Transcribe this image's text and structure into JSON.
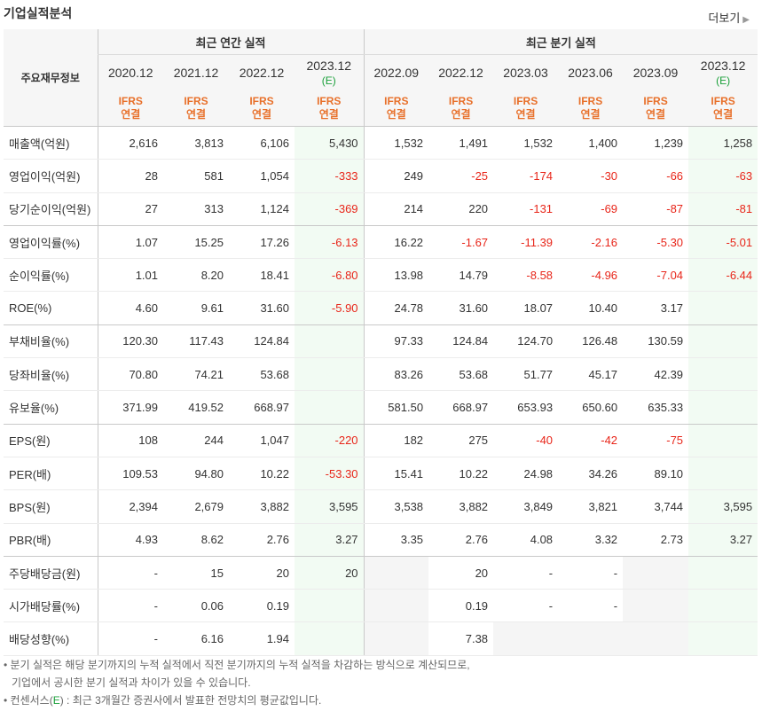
{
  "header": {
    "title": "기업실적분석",
    "more_label": "더보기"
  },
  "table": {
    "row_label_header": "주요재무정보",
    "group_annual": "최근 연간 실적",
    "group_quarter": "최근 분기 실적",
    "ifrs_line1": "IFRS",
    "ifrs_line2": "연결",
    "annual_dates": [
      "2020.12",
      "2021.12",
      "2022.12",
      "2023.12"
    ],
    "quarter_dates": [
      "2022.09",
      "2022.12",
      "2023.03",
      "2023.06",
      "2023.09",
      "2023.12"
    ],
    "estimate_mark": "(E)",
    "rows": [
      {
        "label": "매출액(억원)",
        "values": [
          "2,616",
          "3,813",
          "6,106",
          "5,430",
          "1,532",
          "1,491",
          "1,532",
          "1,400",
          "1,239",
          "1,258"
        ]
      },
      {
        "label": "영업이익(억원)",
        "values": [
          "28",
          "581",
          "1,054",
          "-333",
          "249",
          "-25",
          "-174",
          "-30",
          "-66",
          "-63"
        ]
      },
      {
        "label": "당기순이익(억원)",
        "values": [
          "27",
          "313",
          "1,124",
          "-369",
          "214",
          "220",
          "-131",
          "-69",
          "-87",
          "-81"
        ]
      },
      {
        "label": "영업이익률(%)",
        "values": [
          "1.07",
          "15.25",
          "17.26",
          "-6.13",
          "16.22",
          "-1.67",
          "-11.39",
          "-2.16",
          "-5.30",
          "-5.01"
        ]
      },
      {
        "label": "순이익률(%)",
        "values": [
          "1.01",
          "8.20",
          "18.41",
          "-6.80",
          "13.98",
          "14.79",
          "-8.58",
          "-4.96",
          "-7.04",
          "-6.44"
        ]
      },
      {
        "label": "ROE(%)",
        "values": [
          "4.60",
          "9.61",
          "31.60",
          "-5.90",
          "24.78",
          "31.60",
          "18.07",
          "10.40",
          "3.17",
          ""
        ]
      },
      {
        "label": "부채비율(%)",
        "values": [
          "120.30",
          "117.43",
          "124.84",
          "",
          "97.33",
          "124.84",
          "124.70",
          "126.48",
          "130.59",
          ""
        ]
      },
      {
        "label": "당좌비율(%)",
        "values": [
          "70.80",
          "74.21",
          "53.68",
          "",
          "83.26",
          "53.68",
          "51.77",
          "45.17",
          "42.39",
          ""
        ]
      },
      {
        "label": "유보율(%)",
        "values": [
          "371.99",
          "419.52",
          "668.97",
          "",
          "581.50",
          "668.97",
          "653.93",
          "650.60",
          "635.33",
          ""
        ]
      },
      {
        "label": "EPS(원)",
        "values": [
          "108",
          "244",
          "1,047",
          "-220",
          "182",
          "275",
          "-40",
          "-42",
          "-75",
          ""
        ]
      },
      {
        "label": "PER(배)",
        "values": [
          "109.53",
          "94.80",
          "10.22",
          "-53.30",
          "15.41",
          "10.22",
          "24.98",
          "34.26",
          "89.10",
          ""
        ]
      },
      {
        "label": "BPS(원)",
        "values": [
          "2,394",
          "2,679",
          "3,882",
          "3,595",
          "3,538",
          "3,882",
          "3,849",
          "3,821",
          "3,744",
          "3,595"
        ]
      },
      {
        "label": "PBR(배)",
        "values": [
          "4.93",
          "8.62",
          "2.76",
          "3.27",
          "3.35",
          "2.76",
          "4.08",
          "3.32",
          "2.73",
          "3.27"
        ]
      },
      {
        "label": "주당배당금(원)",
        "values": [
          "-",
          "15",
          "20",
          "20",
          "",
          "20",
          "-",
          "-",
          "",
          ""
        ]
      },
      {
        "label": "시가배당률(%)",
        "values": [
          "-",
          "0.06",
          "0.19",
          "",
          "",
          "0.19",
          "-",
          "-",
          "",
          ""
        ]
      },
      {
        "label": "배당성향(%)",
        "values": [
          "-",
          "6.16",
          "1.94",
          "",
          "",
          "7.38",
          "",
          "",
          "",
          ""
        ]
      }
    ]
  },
  "notes": {
    "line1": "• 분기 실적은 해당 분기까지의 누적 실적에서 직전 분기까지의 누적 실적을 차감하는 방식으로 계산되므로,",
    "line2": "기업에서 공시한 분기 실적과 차이가 있을 수 있습니다.",
    "line3_prefix": "• 컨센서스(",
    "line3_mark": "E",
    "line3_suffix": ") : 최근 3개월간 증권사에서 발표한 전망치의 평균값입니다."
  },
  "colors": {
    "negative": "#e8261a",
    "ifrs": "#e8702a",
    "estimate": "#1aa03a",
    "estimate_bg": "#f2fbf3"
  }
}
